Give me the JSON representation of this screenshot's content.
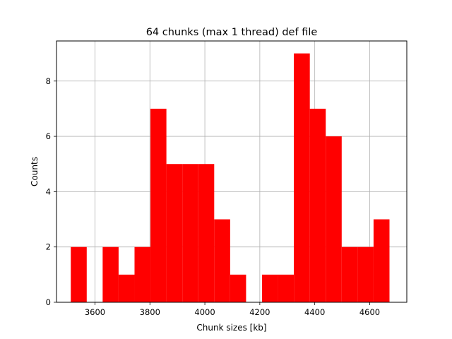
{
  "chart_data": {
    "type": "bar",
    "title": "64 chunks (max 1 thread) def file",
    "xlabel": "Chunk sizes [kb]",
    "ylabel": "Counts",
    "bar_color": "#ff0000",
    "grid": true,
    "xlim": [
      3460,
      4735
    ],
    "ylim": [
      0,
      9.45
    ],
    "xticks": [
      3600,
      3800,
      4000,
      4200,
      4400,
      4600
    ],
    "yticks": [
      0,
      2,
      4,
      6,
      8
    ],
    "bins": [
      {
        "x0": 3512,
        "x1": 3570,
        "count": 2
      },
      {
        "x0": 3570,
        "x1": 3628,
        "count": 0
      },
      {
        "x0": 3628,
        "x1": 3686,
        "count": 2
      },
      {
        "x0": 3686,
        "x1": 3744,
        "count": 1
      },
      {
        "x0": 3744,
        "x1": 3802,
        "count": 2
      },
      {
        "x0": 3802,
        "x1": 3860,
        "count": 7
      },
      {
        "x0": 3860,
        "x1": 3918,
        "count": 5
      },
      {
        "x0": 3918,
        "x1": 3976,
        "count": 5
      },
      {
        "x0": 3976,
        "x1": 4034,
        "count": 5
      },
      {
        "x0": 4034,
        "x1": 4092,
        "count": 3
      },
      {
        "x0": 4092,
        "x1": 4150,
        "count": 1
      },
      {
        "x0": 4150,
        "x1": 4208,
        "count": 0
      },
      {
        "x0": 4208,
        "x1": 4266,
        "count": 1
      },
      {
        "x0": 4266,
        "x1": 4324,
        "count": 1
      },
      {
        "x0": 4324,
        "x1": 4382,
        "count": 9
      },
      {
        "x0": 4382,
        "x1": 4440,
        "count": 7
      },
      {
        "x0": 4440,
        "x1": 4498,
        "count": 6
      },
      {
        "x0": 4498,
        "x1": 4556,
        "count": 2
      },
      {
        "x0": 4556,
        "x1": 4614,
        "count": 2
      },
      {
        "x0": 4614,
        "x1": 4672,
        "count": 3
      }
    ]
  }
}
